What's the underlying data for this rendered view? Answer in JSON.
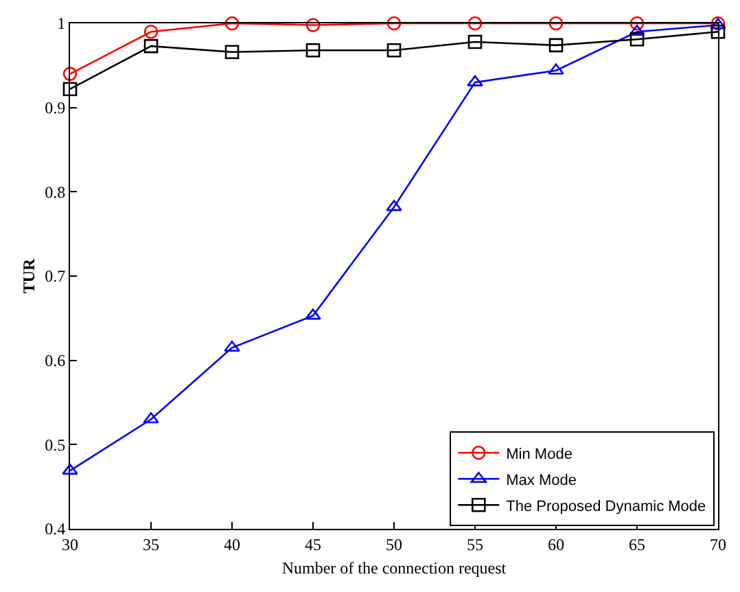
{
  "chart_data": {
    "type": "line",
    "xlabel": "Number of the connection request",
    "ylabel": "TUR",
    "x": [
      30,
      35,
      40,
      45,
      50,
      55,
      60,
      65,
      70
    ],
    "series": [
      {
        "name": "Min Mode",
        "color": "#ff0000",
        "marker": "circle",
        "values": [
          0.94,
          0.99,
          1.0,
          0.998,
          1.0,
          1.0,
          1.0,
          1.0,
          1.0
        ]
      },
      {
        "name": "Max Mode",
        "color": "#0000ff",
        "marker": "triangle",
        "values": [
          0.469,
          0.53,
          0.615,
          0.653,
          0.782,
          0.93,
          0.944,
          0.99,
          0.998
        ]
      },
      {
        "name": "The Proposed Dynamic Mode",
        "color": "#000000",
        "marker": "square",
        "values": [
          0.922,
          0.973,
          0.966,
          0.968,
          0.968,
          0.978,
          0.974,
          0.981,
          0.99
        ]
      }
    ],
    "xlim": [
      30,
      70
    ],
    "xticks": [
      30,
      35,
      40,
      45,
      50,
      55,
      60,
      65,
      70
    ],
    "ylim": [
      0.4,
      1
    ],
    "yticks": [
      0.4,
      0.5,
      0.6,
      0.7,
      0.8,
      0.9,
      1
    ],
    "legend": "bottom right",
    "line_style": "solid"
  }
}
